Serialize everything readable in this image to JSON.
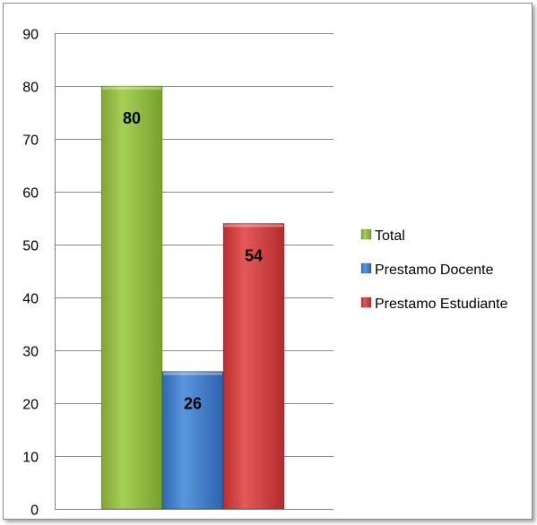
{
  "chart_data": {
    "type": "bar",
    "title": "",
    "xlabel": "",
    "ylabel": "",
    "ylim": [
      0,
      90
    ],
    "yticks": [
      0,
      10,
      20,
      30,
      40,
      50,
      60,
      70,
      80,
      90
    ],
    "grid": "horizontal",
    "legend_position": "right",
    "series": [
      {
        "name": "Total",
        "value": 80,
        "label": "80",
        "color": "#8DB83C"
      },
      {
        "name": "Prestamo Docente",
        "value": 26,
        "label": "26",
        "color": "#3D7CC9"
      },
      {
        "name": "Prestamo Estudiante",
        "value": 54,
        "label": "54",
        "color": "#D23C3C"
      }
    ]
  }
}
